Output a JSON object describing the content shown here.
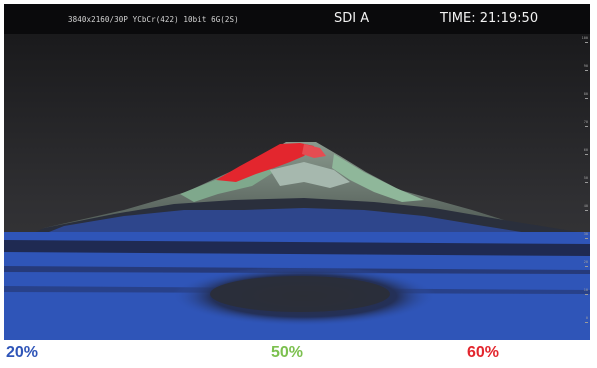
{
  "monitor": {
    "format": "3840x2160/30P YCbCr(422) 10bit 6G(2S)",
    "input": "SDI A",
    "time": "TIME: 21:19:50"
  },
  "false_color_scale": {
    "labels": [
      "100",
      "90",
      "80",
      "70",
      "60",
      "50",
      "40",
      "30",
      "20",
      "10",
      "0"
    ]
  },
  "legend": {
    "blue": {
      "label": "20%",
      "color": "#2f55b8"
    },
    "green": {
      "label": "50%",
      "color": "#7cc04f"
    },
    "red": {
      "label": "60%",
      "color": "#e3262e"
    }
  },
  "colors": {
    "zone_blue": "#2f55b8",
    "zone_green": "#7fa88c",
    "zone_red": "#e3262e",
    "sky": "#1c1c1f"
  }
}
